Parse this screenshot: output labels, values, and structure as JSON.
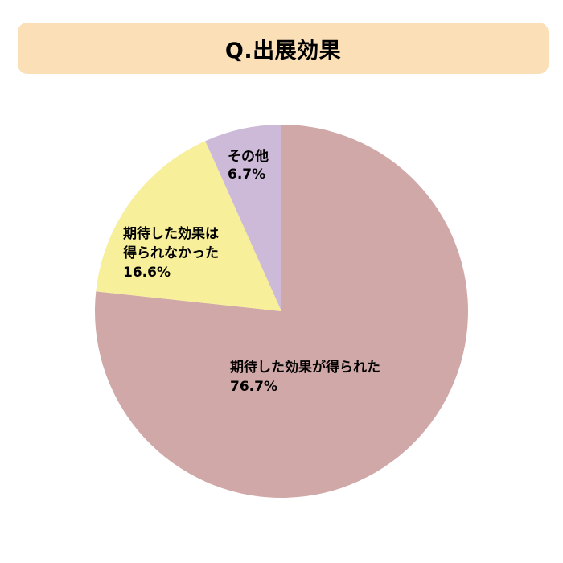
{
  "title": "Q.出展効果",
  "chart_data": {
    "type": "pie",
    "title": "Q.出展効果",
    "start_angle_deg": 0,
    "direction": "clockwise",
    "slices": [
      {
        "label": "期待した効果が得られた",
        "value": 76.7,
        "value_label": "76.7%",
        "color": "#d1a8a8"
      },
      {
        "label": "期待した効果は得られなかった",
        "label_lines": [
          "期待した効果は",
          "得られなかった"
        ],
        "value": 16.6,
        "value_label": "16.6%",
        "color": "#f7ef99"
      },
      {
        "label": "その他",
        "value": 6.7,
        "value_label": "6.7%",
        "color": "#cdbad9"
      }
    ]
  }
}
